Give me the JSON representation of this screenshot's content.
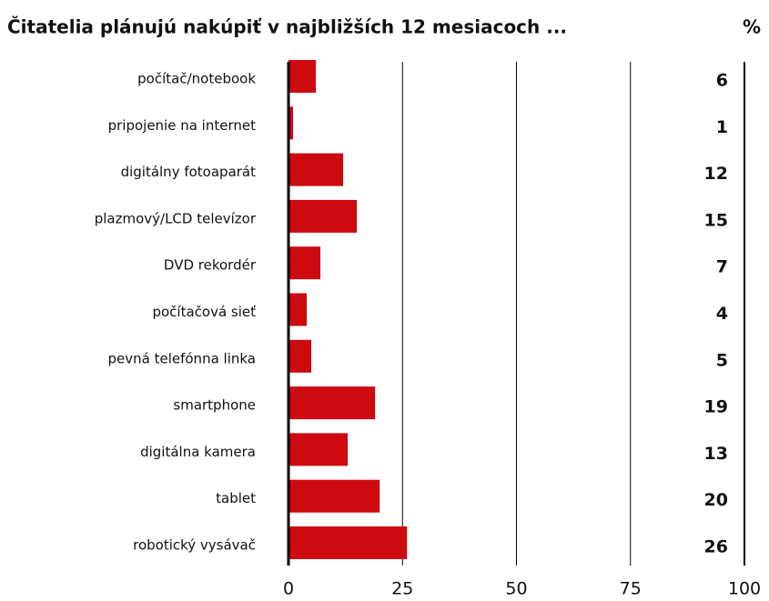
{
  "chart_data": {
    "type": "bar",
    "orientation": "horizontal",
    "title": "Čitatelia plánujú nakúpiť v najbližších 12 mesiacoch ...",
    "value_axis_label": "%",
    "categories": [
      "počítač/notebook",
      "pripojenie na internet",
      "digitálny fotoaparát",
      "plazmový/LCD televízor",
      "DVD rekordér",
      "počítačová sieť",
      "pevná telefónna linka",
      "smartphone",
      "digitálna kamera",
      "tablet",
      "robotický vysávač"
    ],
    "values": [
      6,
      1,
      12,
      15,
      7,
      4,
      5,
      19,
      13,
      20,
      26
    ],
    "color": "#cc0a10",
    "xlim": [
      0,
      100
    ],
    "xticks": [
      0,
      25,
      50,
      75,
      100
    ],
    "grid": true
  }
}
